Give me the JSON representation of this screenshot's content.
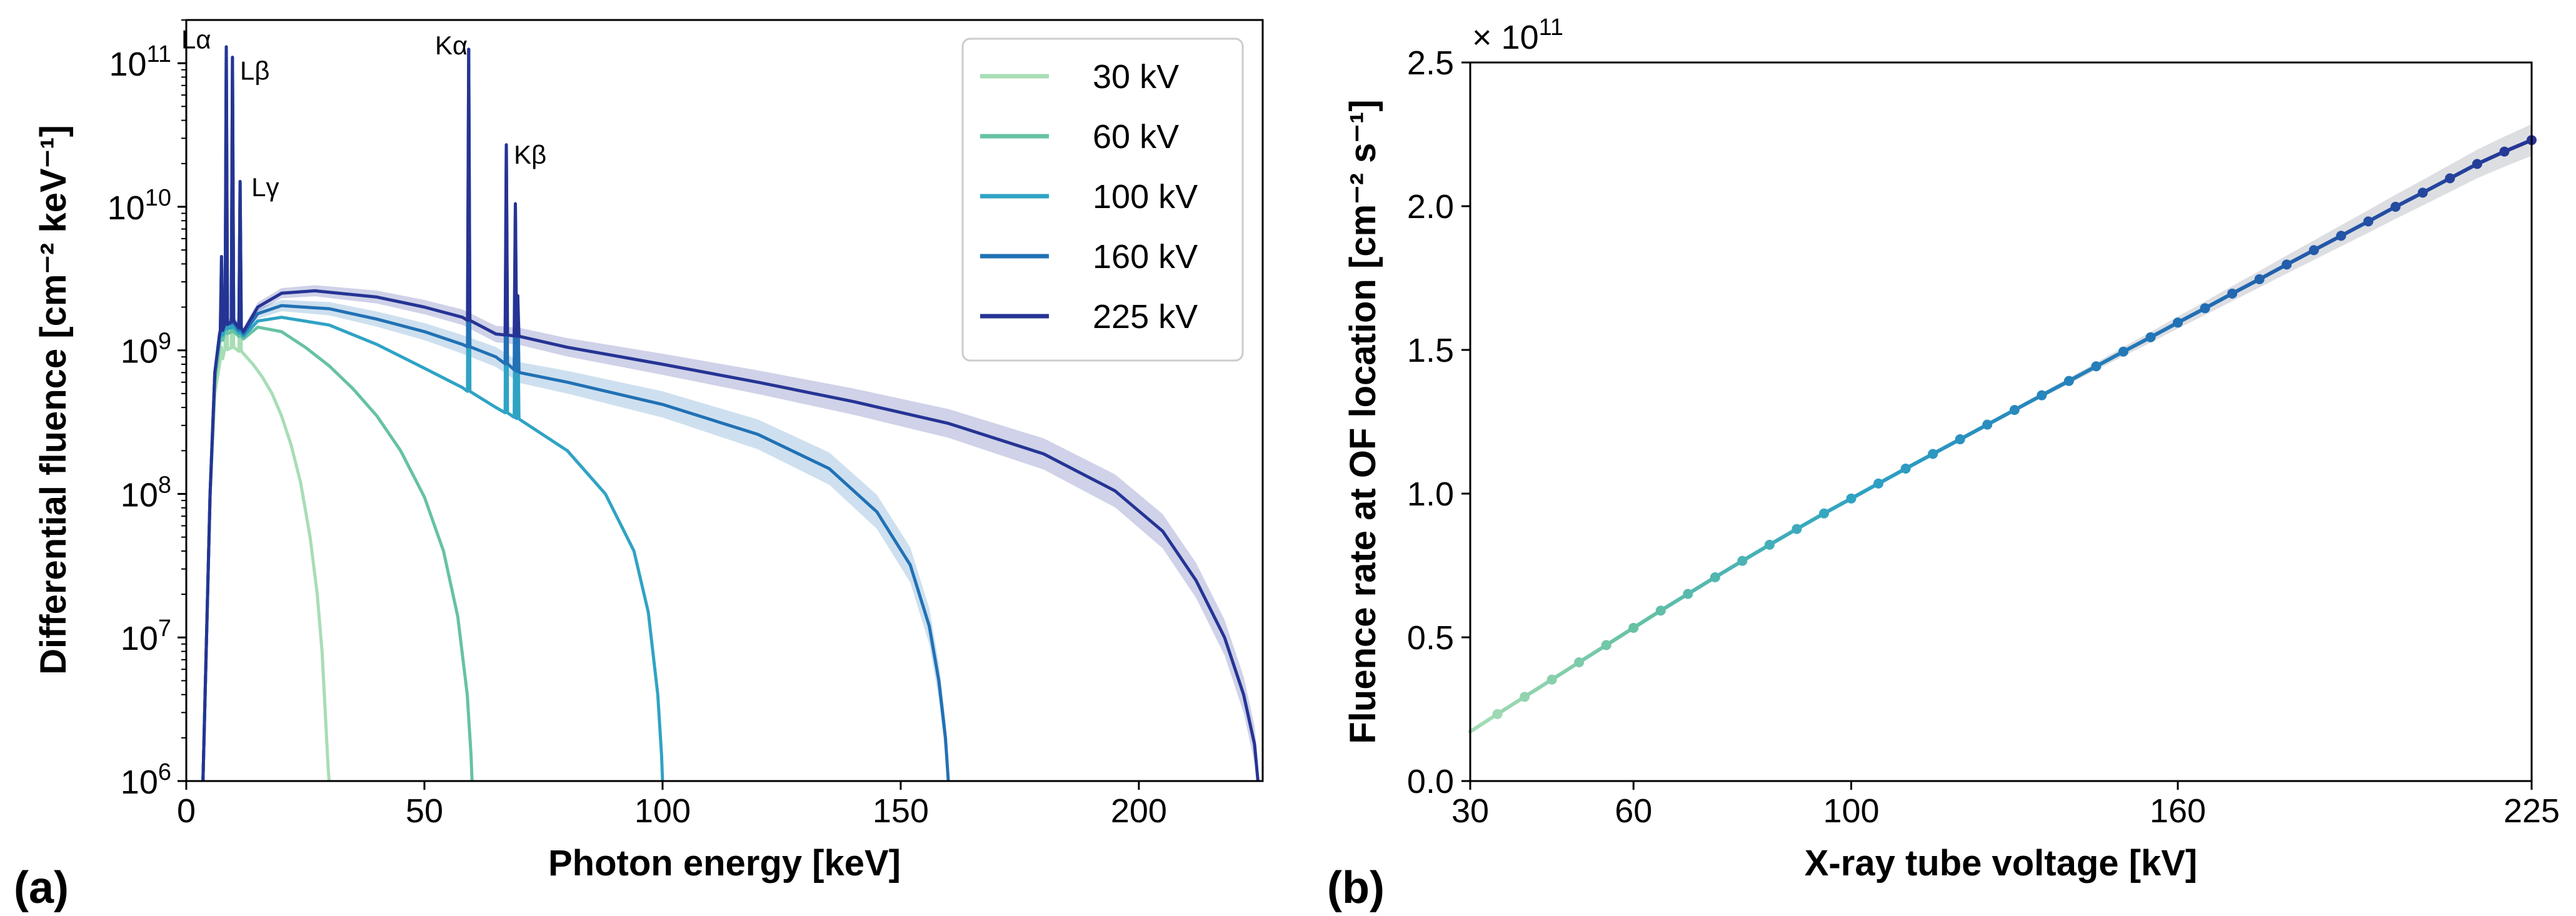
{
  "chart_data": [
    {
      "type": "line",
      "panel_label": "(a)",
      "xlabel": "Photon energy [keV]",
      "ylabel": "Differential fluence [cm⁻² keV⁻¹]",
      "yscale": "log",
      "xlim": [
        0,
        226
      ],
      "ylim": [
        1000000,
        200000000000
      ],
      "xticks": [
        0,
        50,
        100,
        150,
        200
      ],
      "yticks": [
        {
          "base": "10",
          "exp": "6"
        },
        {
          "base": "10",
          "exp": "7"
        },
        {
          "base": "10",
          "exp": "8"
        },
        {
          "base": "10",
          "exp": "9"
        },
        {
          "base": "10",
          "exp": "10"
        },
        {
          "base": "10",
          "exp": "11"
        }
      ],
      "legend": {
        "placement": "top-right",
        "entries": [
          "30 kV",
          "60 kV",
          "100 kV",
          "160 kV",
          "225 kV"
        ]
      },
      "peak_labels": [
        {
          "text": "Lα",
          "x": 8.4,
          "y": 140000000000
        },
        {
          "text": "Lβ",
          "x": 9.7,
          "y": 110000000000
        },
        {
          "text": "Lγ",
          "x": 11.3,
          "y": 16000000000
        },
        {
          "text": "Kα",
          "x": 59.3,
          "y": 125000000000
        },
        {
          "text": "Kβ",
          "x": 67.2,
          "y": 28000000000
        }
      ],
      "series": [
        {
          "name": "30 kV",
          "color": "#a8ddb5",
          "kvp": 30,
          "band": false,
          "points": [
            [
              3.5,
              1000000
            ],
            [
              5,
              100000000
            ],
            [
              6,
              500000000
            ],
            [
              7,
              800000000
            ],
            [
              8,
              1000000000
            ],
            [
              10,
              1050000000
            ],
            [
              12,
              950000000
            ],
            [
              14,
              800000000
            ],
            [
              16,
              650000000
            ],
            [
              18,
              500000000
            ],
            [
              20,
              350000000
            ],
            [
              22,
              220000000
            ],
            [
              24,
              120000000
            ],
            [
              26,
              50000000
            ],
            [
              27.5,
              20000000
            ],
            [
              28.5,
              8000000
            ],
            [
              29.3,
              2500000
            ],
            [
              29.8,
              1200000
            ],
            [
              30,
              1000000
            ]
          ]
        },
        {
          "name": "60 kV",
          "color": "#66c2a4",
          "kvp": 60,
          "band": false,
          "points": [
            [
              3.5,
              1000000
            ],
            [
              5,
              100000000
            ],
            [
              6,
              600000000
            ],
            [
              7,
              1100000000
            ],
            [
              8,
              1300000000
            ],
            [
              10,
              1350000000
            ],
            [
              12,
              1200000000
            ],
            [
              15,
              1450000000
            ],
            [
              20,
              1350000000
            ],
            [
              25,
              1050000000
            ],
            [
              30,
              780000000
            ],
            [
              35,
              540000000
            ],
            [
              40,
              350000000
            ],
            [
              45,
              200000000
            ],
            [
              50,
              95000000
            ],
            [
              54,
              40000000
            ],
            [
              57,
              14000000
            ],
            [
              59,
              4000000
            ],
            [
              59.8,
              1500000
            ],
            [
              60,
              1000000
            ]
          ]
        },
        {
          "name": "100 kV",
          "color": "#2fa3c4",
          "kvp": 100,
          "band": false,
          "points": [
            [
              3.5,
              1000000
            ],
            [
              5,
              100000000
            ],
            [
              6,
              700000000
            ],
            [
              7,
              1200000000
            ],
            [
              8,
              1400000000
            ],
            [
              10,
              1450000000
            ],
            [
              12,
              1250000000
            ],
            [
              15,
              1600000000
            ],
            [
              20,
              1700000000
            ],
            [
              30,
              1500000000
            ],
            [
              40,
              1100000000
            ],
            [
              50,
              750000000
            ],
            [
              58,
              550000000
            ],
            [
              65,
              400000000
            ],
            [
              70,
              330000000
            ],
            [
              80,
              200000000
            ],
            [
              88,
              100000000
            ],
            [
              94,
              40000000
            ],
            [
              97,
              15000000
            ],
            [
              99,
              4000000
            ],
            [
              99.8,
              1500000
            ],
            [
              100,
              1000000
            ]
          ]
        },
        {
          "name": "160 kV",
          "color": "#2171b5",
          "kvp": 160,
          "band": true,
          "points": [
            [
              3.5,
              1000000
            ],
            [
              5,
              100000000
            ],
            [
              6,
              700000000
            ],
            [
              7,
              1300000000
            ],
            [
              8,
              1500000000
            ],
            [
              10,
              1550000000
            ],
            [
              12,
              1300000000
            ],
            [
              15,
              1800000000
            ],
            [
              20,
              2050000000
            ],
            [
              30,
              1950000000
            ],
            [
              40,
              1650000000
            ],
            [
              50,
              1350000000
            ],
            [
              58,
              1100000000
            ],
            [
              65,
              900000000
            ],
            [
              70,
              700000000
            ],
            [
              80,
              600000000
            ],
            [
              100,
              420000000
            ],
            [
              120,
              260000000
            ],
            [
              135,
              150000000
            ],
            [
              145,
              75000000
            ],
            [
              152,
              32000000
            ],
            [
              156,
              12000000
            ],
            [
              158,
              5000000
            ],
            [
              159.4,
              2000000
            ],
            [
              160,
              1000000
            ]
          ]
        },
        {
          "name": "225 kV",
          "color": "#253494",
          "kvp": 225,
          "band": true,
          "points": [
            [
              3.5,
              1000000
            ],
            [
              5,
              100000000
            ],
            [
              6,
              700000000
            ],
            [
              7,
              1300000000
            ],
            [
              8,
              1500000000
            ],
            [
              10,
              1600000000
            ],
            [
              12,
              1350000000
            ],
            [
              15,
              2000000000
            ],
            [
              20,
              2500000000
            ],
            [
              27,
              2600000000
            ],
            [
              40,
              2350000000
            ],
            [
              50,
              2000000000
            ],
            [
              58,
              1700000000
            ],
            [
              65,
              1300000000
            ],
            [
              70,
              1250000000
            ],
            [
              80,
              1050000000
            ],
            [
              100,
              800000000
            ],
            [
              120,
              600000000
            ],
            [
              140,
              440000000
            ],
            [
              160,
              310000000
            ],
            [
              180,
              190000000
            ],
            [
              195,
              105000000
            ],
            [
              205,
              55000000
            ],
            [
              212,
              25000000
            ],
            [
              218,
              10000000
            ],
            [
              222,
              4000000
            ],
            [
              224.3,
              1800000
            ],
            [
              225,
              1000000
            ]
          ]
        }
      ]
    },
    {
      "type": "line",
      "panel_label": "(b)",
      "xlabel": "X-ray tube voltage [kV]",
      "ylabel": "Fluence rate at OF location [cm⁻² s⁻¹]",
      "y_multiplier": {
        "base": "× 10",
        "exp": "11"
      },
      "xlim": [
        30,
        225
      ],
      "ylim": [
        0,
        2.5
      ],
      "xticks": [
        30,
        60,
        100,
        160,
        225
      ],
      "yticks": [
        "0.0",
        "0.5",
        "1.0",
        "1.5",
        "2.0",
        "2.5"
      ],
      "grey_band": true,
      "x": [
        35,
        40,
        45,
        50,
        55,
        60,
        65,
        70,
        75,
        80,
        85,
        90,
        95,
        100,
        105,
        110,
        115,
        120,
        125,
        130,
        135,
        140,
        145,
        150,
        155,
        160,
        165,
        170,
        175,
        180,
        185,
        190,
        195,
        200,
        205,
        210,
        215,
        220,
        225
      ],
      "y": [
        0.233,
        0.293,
        0.353,
        0.413,
        0.473,
        0.533,
        0.593,
        0.651,
        0.709,
        0.766,
        0.822,
        0.877,
        0.931,
        0.983,
        1.035,
        1.087,
        1.138,
        1.189,
        1.24,
        1.291,
        1.342,
        1.392,
        1.443,
        1.494,
        1.544,
        1.595,
        1.645,
        1.696,
        1.746,
        1.797,
        1.847,
        1.897,
        1.947,
        1.998,
        2.047,
        2.097,
        2.147,
        2.19,
        2.23
      ]
    }
  ]
}
